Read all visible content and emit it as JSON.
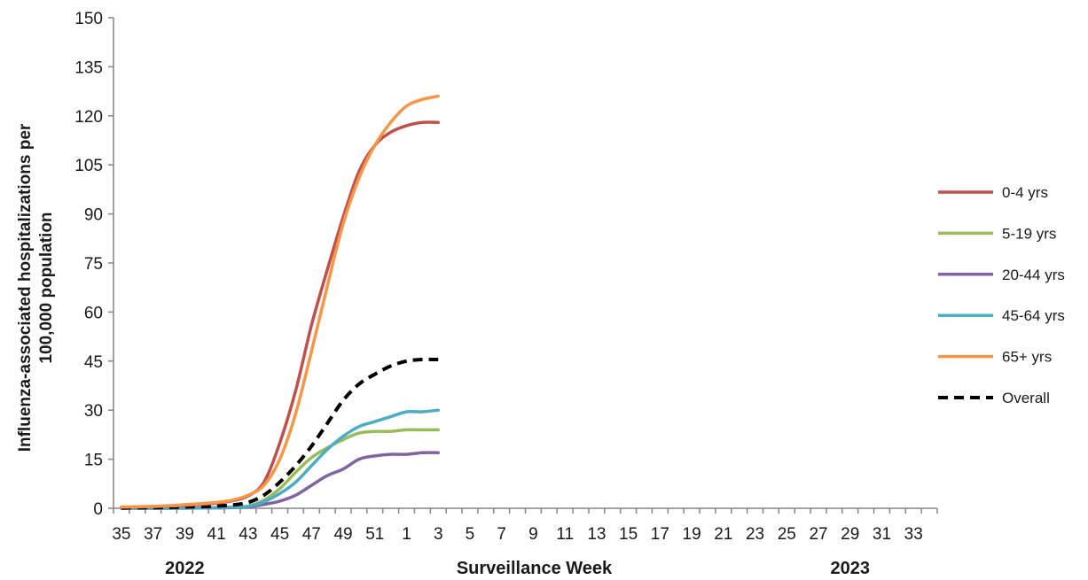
{
  "chart_data": {
    "type": "line",
    "title": "",
    "xlabel": "Surveillance Week",
    "ylabel_lines": [
      "Influenza-associated hospitalizations per",
      "100,000  population"
    ],
    "year_labels": [
      {
        "text": "2022",
        "at_week": "39"
      },
      {
        "text": "2023",
        "at_week": "29"
      }
    ],
    "x_tick_labels": [
      "35",
      "37",
      "39",
      "41",
      "43",
      "45",
      "47",
      "49",
      "51",
      "1",
      "3",
      "5",
      "7",
      "9",
      "11",
      "13",
      "15",
      "17",
      "19",
      "21",
      "23",
      "25",
      "27",
      "29",
      "31",
      "33"
    ],
    "x_weeks": [
      "35",
      "36",
      "37",
      "38",
      "39",
      "40",
      "41",
      "42",
      "43",
      "44",
      "45",
      "46",
      "47",
      "48",
      "49",
      "50",
      "51",
      "52",
      "1",
      "2",
      "3",
      "4",
      "5",
      "6",
      "7",
      "8",
      "9",
      "10",
      "11",
      "12",
      "13",
      "14",
      "15",
      "16",
      "17",
      "18",
      "19",
      "20",
      "21",
      "22",
      "23",
      "24",
      "25",
      "26",
      "27",
      "28",
      "29",
      "30",
      "31",
      "32",
      "33",
      "34"
    ],
    "ylim": [
      0,
      150
    ],
    "y_ticks": [
      0,
      15,
      30,
      45,
      60,
      75,
      90,
      105,
      120,
      135,
      150
    ],
    "grid": false,
    "legend_position": "right",
    "series": [
      {
        "name": "0-4 yrs",
        "color": "#c0504d",
        "dash": false,
        "values": [
          0.3,
          0.4,
          0.5,
          0.7,
          0.9,
          1.2,
          1.6,
          2.3,
          3.8,
          8,
          20,
          36,
          56,
          73,
          89,
          103,
          111,
          115,
          117,
          118,
          118
        ]
      },
      {
        "name": "5-19 yrs",
        "color": "#9bbb59",
        "dash": false,
        "values": [
          0,
          0,
          0,
          0,
          0.1,
          0.1,
          0.2,
          0.3,
          0.7,
          2.5,
          6,
          11,
          15.5,
          18.5,
          21,
          23,
          23.5,
          23.5,
          24,
          24,
          24
        ]
      },
      {
        "name": "20-44 yrs",
        "color": "#8064a2",
        "dash": false,
        "values": [
          0,
          0,
          0,
          0,
          0,
          0.1,
          0.1,
          0.2,
          0.4,
          1.2,
          2.2,
          4,
          7,
          10,
          12,
          15,
          16,
          16.5,
          16.5,
          17,
          17
        ]
      },
      {
        "name": "45-64 yrs",
        "color": "#4bacc6",
        "dash": false,
        "values": [
          0,
          0,
          0,
          0,
          0.1,
          0.1,
          0.2,
          0.3,
          0.6,
          2,
          4.5,
          8,
          13,
          18,
          22,
          25,
          26.5,
          28,
          29.5,
          29.5,
          30
        ]
      },
      {
        "name": "65+ yrs",
        "color": "#f79646",
        "dash": false,
        "values": [
          0.4,
          0.5,
          0.6,
          0.8,
          1.1,
          1.4,
          1.8,
          2.5,
          4,
          7,
          15,
          29,
          48,
          68,
          87,
          101,
          111,
          118,
          123,
          125,
          126
        ]
      },
      {
        "name": "Overall",
        "color": "#000000",
        "dash": true,
        "values": [
          0.1,
          0.2,
          0.2,
          0.3,
          0.4,
          0.5,
          0.7,
          1,
          1.8,
          4,
          8,
          13,
          19,
          26,
          33,
          38,
          41,
          43.5,
          45,
          45.5,
          45.5
        ]
      }
    ]
  }
}
